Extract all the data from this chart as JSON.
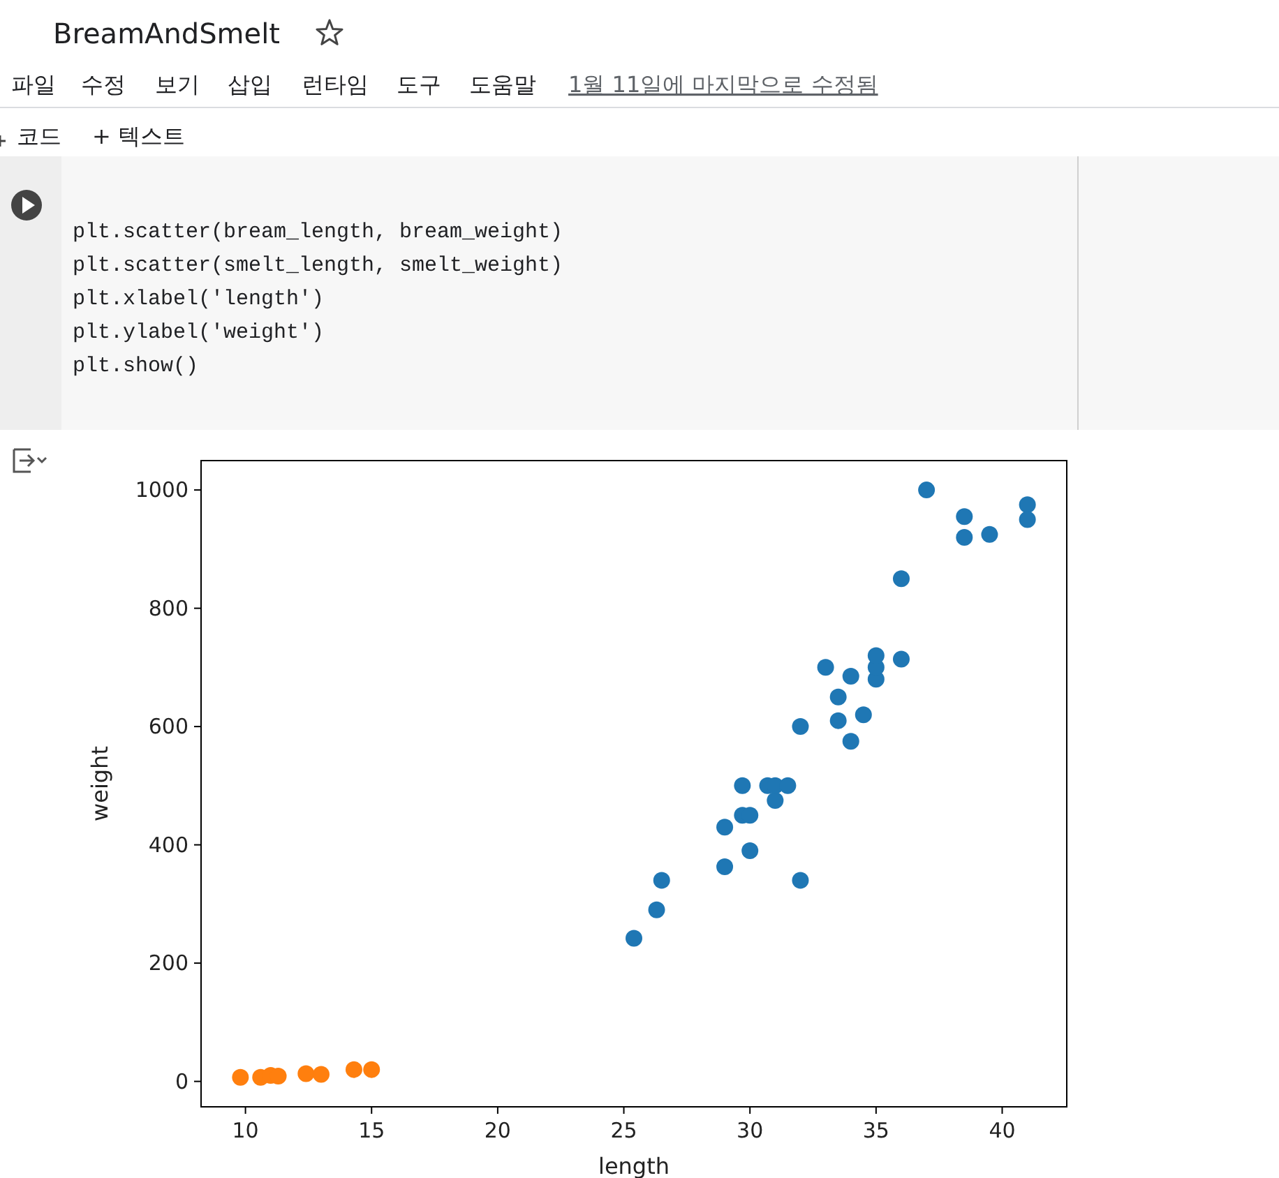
{
  "chart_data": {
    "type": "scatter",
    "xlabel": "length",
    "ylabel": "weight",
    "xlim": [
      8.24,
      42.56
    ],
    "xticks": [
      10,
      15,
      20,
      25,
      30,
      35,
      40
    ],
    "ylim": [
      -42.97,
      1049.7
    ],
    "yticks": [
      0,
      200,
      400,
      600,
      800,
      1000
    ],
    "marker": "circle",
    "grid": false,
    "series": [
      {
        "color": "#1f77b4",
        "x": [
          25.4,
          26.3,
          26.5,
          29.0,
          29.0,
          29.7,
          29.7,
          30.0,
          30.0,
          30.7,
          31.0,
          31.0,
          31.5,
          32.0,
          32.0,
          33.0,
          33.5,
          33.5,
          34.0,
          34.0,
          34.5,
          35.0,
          35.0,
          35.0,
          36.0,
          36.0,
          37.0,
          38.5,
          38.5,
          39.5,
          41.0,
          41.0
        ],
        "values": [
          242,
          290,
          340,
          363,
          430,
          450,
          500,
          390,
          450,
          500,
          475,
          500,
          500,
          340,
          600,
          700,
          610,
          650,
          575,
          685,
          620,
          680,
          700,
          720,
          714,
          850,
          1000,
          920,
          955,
          925,
          975,
          950
        ]
      },
      {
        "color": "#ff7f0e",
        "x": [
          9.8,
          10.6,
          11.0,
          11.3,
          12.4,
          13.0,
          14.3,
          15.0
        ],
        "values": [
          7,
          7,
          10,
          9,
          13,
          12,
          20,
          20
        ]
      }
    ],
    "annotations": [
      "BreamAndSmelt",
      "파일",
      "수정",
      "보기",
      "삽입",
      "런타임",
      "도구",
      "도움말",
      "1월 11일에 마지막으로 수정됨",
      "코드",
      "+ 텍스트",
      "plt.scatter(bream_length, bream_weight)",
      "plt.scatter(smelt_length, smelt_weight)",
      "plt.xlabel('length')",
      "plt.ylabel('weight')",
      "plt.show()"
    ]
  }
}
